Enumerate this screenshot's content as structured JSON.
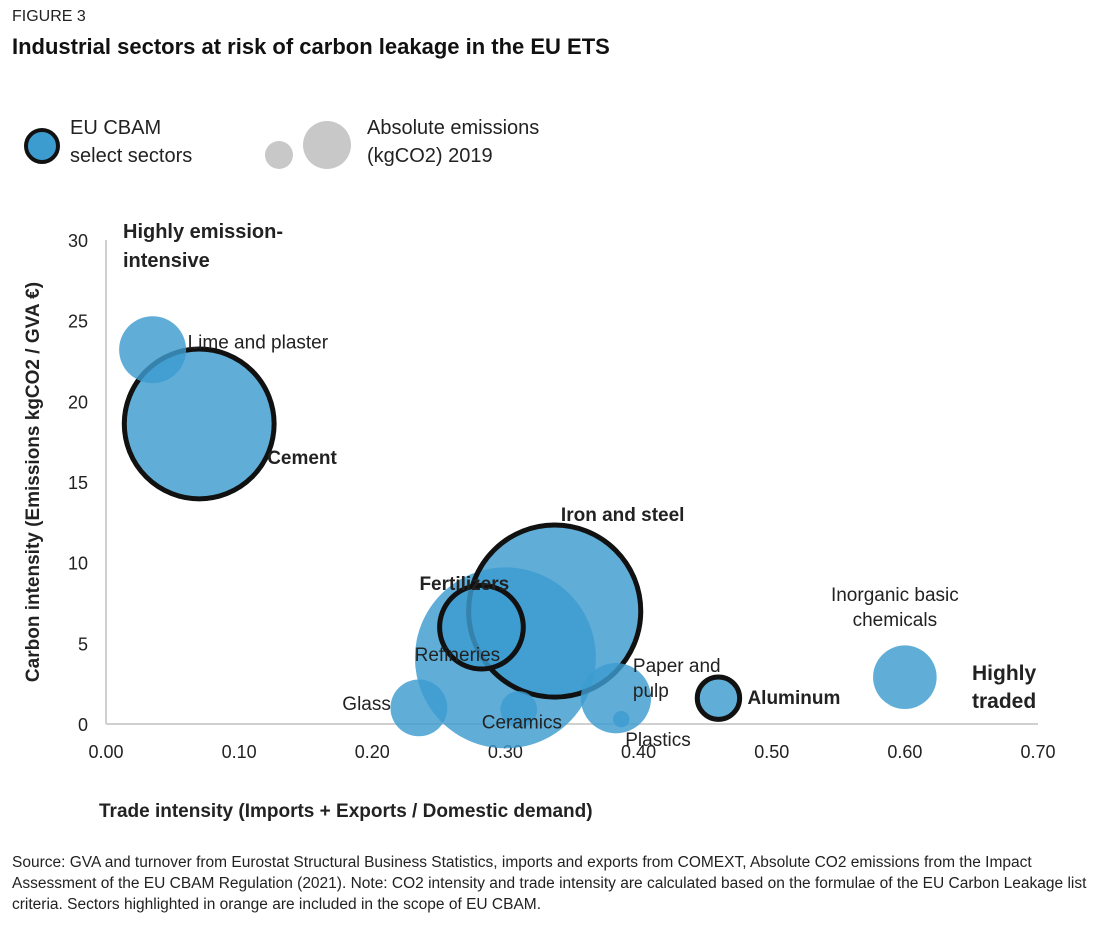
{
  "figure_label": "FIGURE 3",
  "title": "Industrial sectors at risk of carbon leakage in the EU ETS",
  "source_note": "Source: GVA and turnover from Eurostat Structural Business Statistics, imports and exports from COMEXT, Absolute CO2 emissions from the Impact Assessment of the EU CBAM Regulation (2021). Note: CO2 intensity and trade intensity are calculated based on the formulae of the EU Carbon Leakage list criteria. Sectors highlighted in orange are included in the scope of EU CBAM.",
  "colors": {
    "bubble": "#3d9ccf",
    "bubble_outline": "#111111",
    "legend_size": "#c8c8c8",
    "axis": "#d0d0d0",
    "text": "#222222"
  },
  "chart_data": {
    "type": "scatter",
    "subtype": "bubble",
    "xlabel": "Trade intensity (Imports + Exports / Domestic demand)",
    "ylabel": "Carbon intensity (Emissions kgCO2 / GVA €)",
    "xlim": [
      0,
      0.7
    ],
    "ylim": [
      0,
      30
    ],
    "xticks": [
      "0.00",
      "0.10",
      "0.20",
      "0.30",
      "0.40",
      "0.50",
      "0.60",
      "0.70"
    ],
    "yticks": [
      "0",
      "5",
      "10",
      "15",
      "20",
      "25",
      "30"
    ],
    "grid": false,
    "legend": {
      "position": "top-left",
      "cbam_label": "EU CBAM select sectors",
      "size_label": "Absolute emissions (kgCO2) 2019"
    },
    "corner_labels": {
      "top_left": "Highly emission-intensive",
      "bottom_right": "Highly traded"
    },
    "points": [
      {
        "label": "Lime and plaster",
        "x": 0.035,
        "y": 23.2,
        "size": 1.0,
        "cbam": false
      },
      {
        "label": "Cement",
        "x": 0.07,
        "y": 18.6,
        "size": 5.0,
        "cbam": true
      },
      {
        "label": "Refineries",
        "x": 0.3,
        "y": 4.1,
        "size": 7.3,
        "cbam": false
      },
      {
        "label": "Iron and steel",
        "x": 0.337,
        "y": 7.0,
        "size": 6.6,
        "cbam": true
      },
      {
        "label": "Fertilizers",
        "x": 0.282,
        "y": 6.0,
        "size": 1.56,
        "cbam": true
      },
      {
        "label": "Glass",
        "x": 0.235,
        "y": 1.0,
        "size": 0.72,
        "cbam": false
      },
      {
        "label": "Ceramics",
        "x": 0.31,
        "y": 0.9,
        "size": 0.3,
        "cbam": false
      },
      {
        "label": "Paper and pulp",
        "x": 0.383,
        "y": 1.6,
        "size": 1.1,
        "cbam": false
      },
      {
        "label": "Plastics",
        "x": 0.387,
        "y": 0.3,
        "size": 0.06,
        "cbam": false
      },
      {
        "label": "Aluminum",
        "x": 0.46,
        "y": 1.6,
        "size": 0.4,
        "cbam": true
      },
      {
        "label": "Inorganic basic chemicals",
        "x": 0.6,
        "y": 2.9,
        "size": 0.9,
        "cbam": false
      }
    ]
  }
}
